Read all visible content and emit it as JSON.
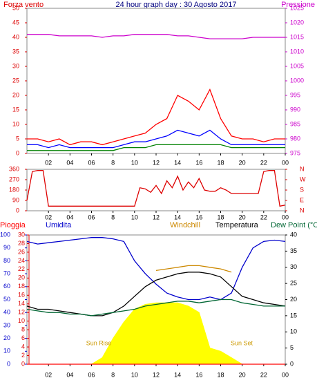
{
  "chart_data": [
    {
      "type": "line",
      "title": "24 hour graph day : 30 Agosto 2017",
      "y_label": "Forza vento",
      "y2_label": "Pressione",
      "x": [
        0,
        1,
        2,
        3,
        4,
        5,
        6,
        7,
        8,
        9,
        10,
        11,
        12,
        13,
        14,
        15,
        16,
        17,
        18,
        19,
        20,
        21,
        22,
        23,
        24
      ],
      "xlim": [
        0,
        24
      ],
      "xticks": [
        {
          "value": 2,
          "label": "02"
        },
        {
          "value": 4,
          "label": "04"
        },
        {
          "value": 6,
          "label": "06"
        },
        8,
        10,
        12,
        14,
        16,
        18,
        20,
        22,
        {
          "value": 24,
          "label": "00"
        }
      ],
      "ylim": [
        0,
        50
      ],
      "yticks": [
        0,
        5,
        10,
        15,
        20,
        25,
        30,
        35,
        40,
        45,
        50
      ],
      "y2lim": [
        975,
        1025
      ],
      "y2ticks": [
        975,
        980,
        985,
        990,
        995,
        1000,
        1005,
        1010,
        1015,
        1020,
        1025
      ],
      "series": [
        {
          "color": "#ff0000",
          "values": [
            5,
            5,
            4,
            5,
            3,
            4,
            4,
            3,
            4,
            5,
            6,
            7,
            10,
            12,
            20,
            18,
            15,
            22,
            12,
            6,
            5,
            5,
            4,
            5,
            5
          ]
        },
        {
          "color": "#0000ff",
          "values": [
            3,
            3,
            2,
            3,
            2,
            2,
            2,
            2,
            2,
            3,
            4,
            4,
            5,
            6,
            8,
            7,
            6,
            8,
            5,
            3,
            3,
            3,
            3,
            3,
            3
          ]
        },
        {
          "color": "#008000",
          "values": [
            1,
            1,
            1,
            1,
            1,
            1,
            1,
            1,
            1,
            2,
            2,
            2,
            3,
            3,
            3,
            3,
            3,
            3,
            3,
            2,
            2,
            2,
            2,
            2,
            2
          ]
        },
        {
          "color": "#cc00cc",
          "axis": "y2",
          "values": [
            1016,
            1016,
            1016,
            1015.5,
            1015.5,
            1015.5,
            1015.5,
            1015,
            1015.5,
            1015.5,
            1016,
            1016,
            1016,
            1016,
            1015.5,
            1015.5,
            1015,
            1014.5,
            1014.5,
            1014.5,
            1014.5,
            1015,
            1015,
            1015,
            1015
          ]
        }
      ]
    },
    {
      "type": "line",
      "x": [
        0,
        0.5,
        1,
        1.5,
        2,
        2.5,
        3,
        3.5,
        4,
        4.5,
        5,
        5.5,
        6,
        6.5,
        7,
        7.5,
        8,
        8.5,
        9,
        9.5,
        10,
        10.5,
        11,
        11.5,
        12,
        12.5,
        13,
        13.5,
        14,
        14.5,
        15,
        15.5,
        16,
        16.5,
        17,
        17.5,
        18,
        18.5,
        19,
        19.5,
        20,
        20.5,
        21,
        21.5,
        22,
        22.5,
        23,
        23.5,
        24
      ],
      "xlim": [
        0,
        24
      ],
      "xticks": [
        {
          "value": 2,
          "label": "02"
        },
        {
          "value": 4,
          "label": "04"
        },
        {
          "value": 6,
          "label": "06"
        },
        8,
        10,
        12,
        14,
        16,
        18,
        20,
        22,
        {
          "value": 24,
          "label": "00"
        }
      ],
      "ylim": [
        0,
        360
      ],
      "yticks": [
        0,
        90,
        180,
        270,
        360
      ],
      "y2lim": [
        0,
        360
      ],
      "y2ticks": [
        {
          "value": 0,
          "label": "N"
        },
        {
          "value": 90,
          "label": "E"
        },
        {
          "value": 180,
          "label": "S"
        },
        {
          "value": 270,
          "label": "W"
        },
        {
          "value": 360,
          "label": "N"
        }
      ],
      "series": [
        {
          "color": "#dd0000",
          "values": [
            90,
            340,
            350,
            350,
            40,
            40,
            40,
            40,
            40,
            40,
            40,
            40,
            40,
            40,
            40,
            40,
            40,
            40,
            40,
            40,
            40,
            200,
            190,
            160,
            220,
            150,
            260,
            200,
            300,
            180,
            250,
            200,
            280,
            180,
            170,
            170,
            200,
            180,
            150,
            150,
            150,
            150,
            150,
            150,
            340,
            350,
            350,
            40,
            50
          ]
        }
      ]
    },
    {
      "type": "line",
      "annotations": [
        "Sun Rise",
        "Sun Set"
      ],
      "x": [
        0,
        1,
        2,
        3,
        4,
        5,
        6,
        7,
        8,
        9,
        10,
        11,
        12,
        13,
        14,
        15,
        16,
        17,
        18,
        19,
        20,
        21,
        22,
        23,
        24
      ],
      "xlim": [
        0,
        24
      ],
      "xticks": [
        {
          "value": 2,
          "label": "02"
        },
        {
          "value": 4,
          "label": "04"
        },
        {
          "value": 6,
          "label": "06"
        },
        8,
        10,
        12,
        14,
        16,
        18,
        20,
        22,
        {
          "value": 24,
          "label": "00"
        }
      ],
      "ylim": [
        0,
        100
      ],
      "yticks": [
        0,
        10,
        20,
        30,
        40,
        50,
        60,
        70,
        80,
        90,
        100
      ],
      "y3lim": [
        0,
        30
      ],
      "y3ticks": [
        0,
        2,
        4,
        6,
        8,
        10,
        12,
        14,
        16,
        18,
        20,
        22,
        24,
        26,
        28,
        30
      ],
      "y2lim": [
        0,
        40
      ],
      "y2ticks": [
        0,
        5,
        10,
        15,
        20,
        25,
        30,
        35,
        40
      ],
      "series": [
        {
          "type": "area",
          "color": "#ffff00",
          "axis": "y2",
          "values": [
            0,
            0,
            0,
            0,
            0,
            0,
            0,
            2,
            8,
            13,
            17,
            18.5,
            19,
            19,
            19,
            18,
            16,
            5,
            4,
            2,
            0,
            0,
            0,
            0,
            0
          ]
        },
        {
          "name": "Pioggia",
          "color": "#ff0000",
          "axis": "y3",
          "values": [
            0,
            0,
            0,
            0,
            0,
            0,
            0,
            0,
            0,
            0,
            0,
            0,
            0,
            0,
            0,
            0,
            0,
            0,
            0,
            0,
            0,
            0,
            0,
            0,
            0
          ]
        },
        {
          "name": "Umidita",
          "color": "#0000cc",
          "values": [
            95,
            93,
            94,
            95,
            96,
            97,
            98,
            98,
            97,
            95,
            80,
            70,
            62,
            55,
            52,
            50,
            50,
            52,
            50,
            55,
            75,
            90,
            95,
            96,
            95
          ]
        },
        {
          "name": "Windchill",
          "color": "#cc8800",
          "axis": "y2",
          "values": [
            null,
            null,
            null,
            null,
            null,
            null,
            null,
            null,
            null,
            null,
            null,
            null,
            29,
            29.5,
            30,
            30.5,
            30.5,
            30,
            29.5,
            28.5,
            null,
            null,
            null,
            null,
            null
          ]
        },
        {
          "name": "Temperatura",
          "color": "#000000",
          "axis": "y2",
          "values": [
            18,
            17,
            17,
            16.5,
            16,
            15.5,
            15,
            15,
            16,
            18,
            21,
            24,
            26,
            27,
            28,
            28.5,
            28.5,
            28,
            27,
            24,
            21,
            20,
            19,
            18.5,
            18
          ]
        },
        {
          "name": "Dew Point (°C",
          "color": "#006633",
          "axis": "y2",
          "values": [
            17,
            16.5,
            16,
            16,
            15.5,
            15.5,
            15,
            15.5,
            16,
            16.5,
            17,
            18,
            18.5,
            19,
            19.5,
            19.5,
            19,
            19.5,
            20,
            20,
            19,
            18.5,
            18,
            18,
            18
          ]
        }
      ]
    }
  ]
}
